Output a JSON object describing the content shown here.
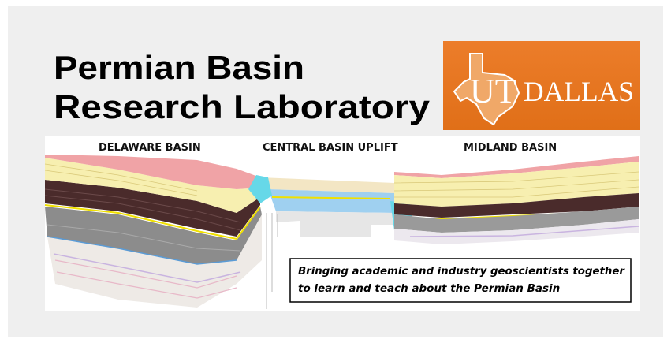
{
  "header": {
    "title_lines": [
      "Permian Basin",
      "Research Laboratory"
    ]
  },
  "logo": {
    "ut": "UT",
    "dallas": "DALLAS"
  },
  "cross_section": {
    "labels": [
      "DELAWARE BASIN",
      "CENTRAL BASIN UPLIFT",
      "MIDLAND BASIN"
    ]
  },
  "tagline": {
    "lines": [
      "Bringing academic and industry geoscientists together",
      "to learn and teach about the Permian Basin"
    ]
  }
}
